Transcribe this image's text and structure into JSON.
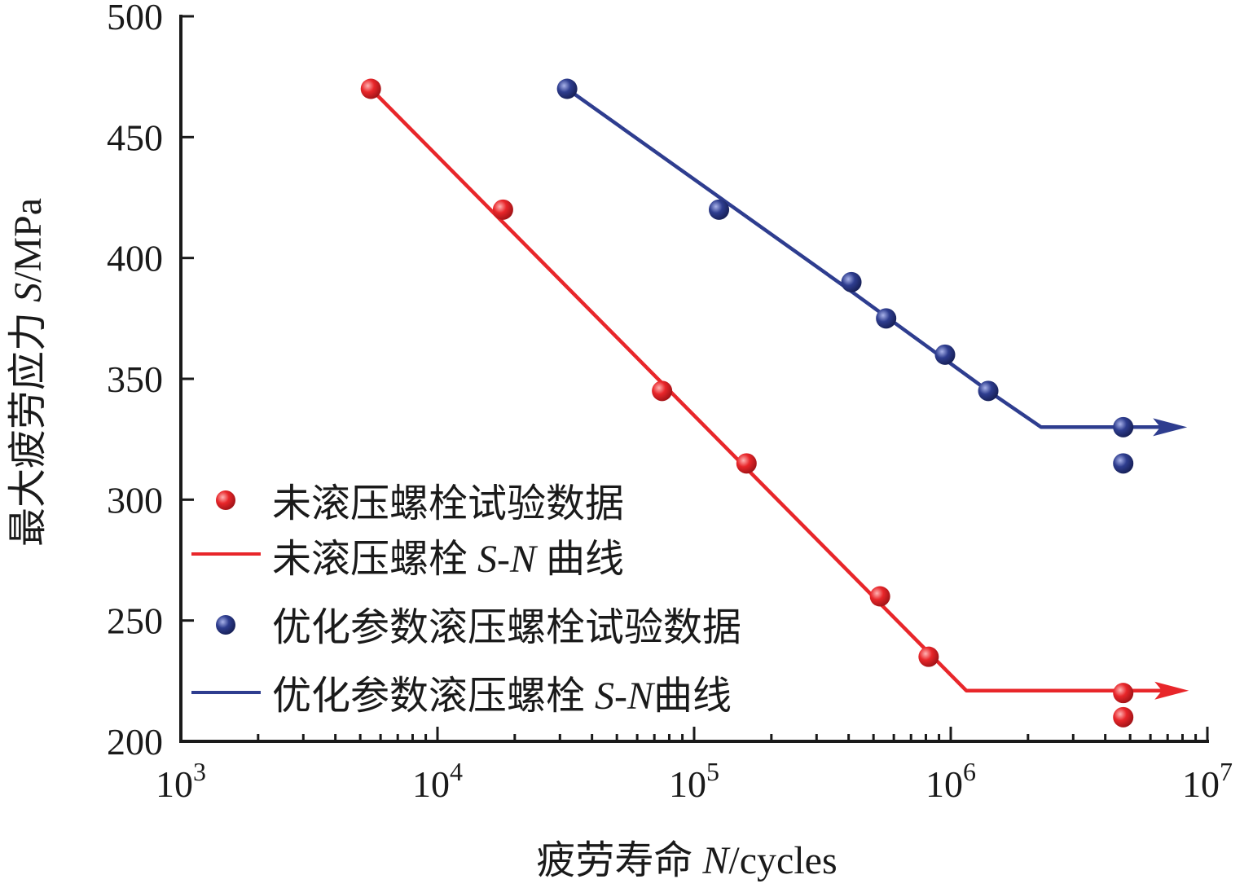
{
  "chart_data": {
    "type": "scatter",
    "xscale": "log",
    "xlim": [
      1000,
      10000000
    ],
    "ylim": [
      200,
      500
    ],
    "x_ticks": [
      {
        "value": 1000,
        "base": "10",
        "exp": "3"
      },
      {
        "value": 10000,
        "base": "10",
        "exp": "4"
      },
      {
        "value": 100000,
        "base": "10",
        "exp": "5"
      },
      {
        "value": 1000000,
        "base": "10",
        "exp": "6"
      },
      {
        "value": 10000000,
        "base": "10",
        "exp": "7"
      }
    ],
    "y_ticks": [
      {
        "value": 200,
        "label": "200"
      },
      {
        "value": 250,
        "label": "250"
      },
      {
        "value": 300,
        "label": "300"
      },
      {
        "value": 350,
        "label": "350"
      },
      {
        "value": 400,
        "label": "400"
      },
      {
        "value": 450,
        "label": "450"
      },
      {
        "value": 500,
        "label": "500"
      }
    ],
    "xlabel": {
      "prefix": "疲劳寿命 ",
      "italic": "N",
      "suffix": "/cycles"
    },
    "ylabel": {
      "prefix": "最大疲劳应力 ",
      "italic": "S",
      "suffix": "/MPa"
    },
    "legend_position": "bottom-left",
    "series": [
      {
        "name": "未滚压螺栓试验数据",
        "kind": "points",
        "color": "#e8262a",
        "points": [
          [
            5500,
            470
          ],
          [
            18000,
            420
          ],
          [
            75000,
            345
          ],
          [
            160000,
            315
          ],
          [
            530000,
            260
          ],
          [
            820000,
            235
          ],
          [
            4700000,
            220
          ],
          [
            4700000,
            210
          ]
        ]
      },
      {
        "name_parts": {
          "prefix": "未滚压螺栓 ",
          "italic": "S",
          "mid": "-",
          "italic2": "N",
          "suffix": " 曲线"
        },
        "kind": "line",
        "color": "#e8262a",
        "points": [
          [
            5500,
            470
          ],
          [
            1150000,
            221
          ],
          [
            6800000,
            221
          ]
        ],
        "arrow": true
      },
      {
        "name": "优化参数滚压螺栓试验数据",
        "kind": "points",
        "color": "#2e3d8f",
        "points": [
          [
            32000,
            470
          ],
          [
            125000,
            420
          ],
          [
            410000,
            390
          ],
          [
            560000,
            375
          ],
          [
            950000,
            360
          ],
          [
            1400000,
            345
          ],
          [
            4700000,
            330
          ],
          [
            4700000,
            315
          ]
        ]
      },
      {
        "name_parts": {
          "prefix": "优化参数滚压螺栓 ",
          "italic": "S",
          "mid": "-",
          "italic2": "N",
          "suffix": "曲线"
        },
        "kind": "line",
        "color": "#2e3d8f",
        "points": [
          [
            32000,
            470
          ],
          [
            400000,
            387
          ],
          [
            1400000,
            345
          ],
          [
            2250000,
            330
          ],
          [
            6700000,
            330
          ]
        ],
        "arrow": true
      }
    ]
  }
}
